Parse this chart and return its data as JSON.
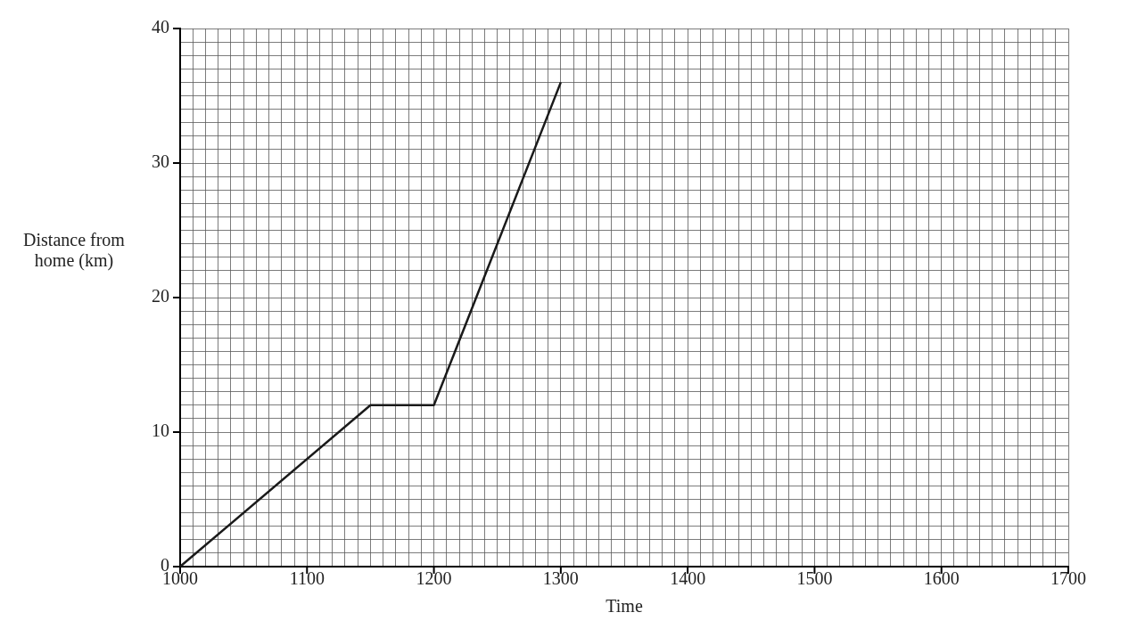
{
  "chart_data": {
    "type": "line",
    "xlabel": "Time",
    "ylabel": "Distance from home (km)",
    "x": [
      1000,
      1150,
      1200,
      1300
    ],
    "series": [
      {
        "color": "#1a1a1a",
        "values": [
          0,
          12,
          12,
          36
        ]
      }
    ],
    "xlim": [
      1000,
      1700
    ],
    "ylim": [
      0,
      40
    ],
    "xticks": [
      1000,
      {
        "value": 1010,
        "label": null
      },
      {
        "value": 1020,
        "label": null
      },
      {
        "value": 1030,
        "label": null
      },
      {
        "value": 1040,
        "label": null
      },
      {
        "value": 1050,
        "label": null
      },
      {
        "value": 1060,
        "label": null
      },
      {
        "value": 1070,
        "label": null
      },
      {
        "value": 1080,
        "label": null
      },
      {
        "value": 1090,
        "label": null
      },
      1100,
      {
        "value": 1110,
        "label": null
      },
      {
        "value": 1120,
        "label": null
      },
      {
        "value": 1130,
        "label": null
      },
      {
        "value": 1140,
        "label": null
      },
      {
        "value": 1150,
        "label": null
      },
      {
        "value": 1160,
        "label": null
      },
      {
        "value": 1170,
        "label": null
      },
      {
        "value": 1180,
        "label": null
      },
      {
        "value": 1190,
        "label": null
      },
      1200,
      {
        "value": 1210,
        "label": null
      },
      {
        "value": 1220,
        "label": null
      },
      {
        "value": 1230,
        "label": null
      },
      {
        "value": 1240,
        "label": null
      },
      {
        "value": 1250,
        "label": null
      },
      {
        "value": 1260,
        "label": null
      },
      {
        "value": 1270,
        "label": null
      },
      {
        "value": 1280,
        "label": null
      },
      {
        "value": 1290,
        "label": null
      },
      1300,
      {
        "value": 1310,
        "label": null
      },
      {
        "value": 1320,
        "label": null
      },
      {
        "value": 1330,
        "label": null
      },
      {
        "value": 1340,
        "label": null
      },
      {
        "value": 1350,
        "label": null
      },
      {
        "value": 1360,
        "label": null
      },
      {
        "value": 1370,
        "label": null
      },
      {
        "value": 1380,
        "label": null
      },
      {
        "value": 1390,
        "label": null
      },
      1400,
      {
        "value": 1410,
        "label": null
      },
      {
        "value": 1420,
        "label": null
      },
      {
        "value": 1430,
        "label": null
      },
      {
        "value": 1440,
        "label": null
      },
      {
        "value": 1450,
        "label": null
      },
      {
        "value": 1460,
        "label": null
      },
      {
        "value": 1470,
        "label": null
      },
      {
        "value": 1480,
        "label": null
      },
      {
        "value": 1490,
        "label": null
      },
      1500,
      {
        "value": 1510,
        "label": null
      },
      {
        "value": 1520,
        "label": null
      },
      {
        "value": 1530,
        "label": null
      },
      {
        "value": 1540,
        "label": null
      },
      {
        "value": 1550,
        "label": null
      },
      {
        "value": 1560,
        "label": null
      },
      {
        "value": 1570,
        "label": null
      },
      {
        "value": 1580,
        "label": null
      },
      {
        "value": 1590,
        "label": null
      },
      1600,
      {
        "value": 1610,
        "label": null
      },
      {
        "value": 1620,
        "label": null
      },
      {
        "value": 1630,
        "label": null
      },
      {
        "value": 1640,
        "label": null
      },
      {
        "value": 1650,
        "label": null
      },
      {
        "value": 1660,
        "label": null
      },
      {
        "value": 1670,
        "label": null
      },
      {
        "value": 1680,
        "label": null
      },
      {
        "value": 1690,
        "label": null
      },
      1700
    ],
    "yticks": [
      0,
      {
        "value": 1,
        "label": null
      },
      {
        "value": 2,
        "label": null
      },
      {
        "value": 3,
        "label": null
      },
      {
        "value": 4,
        "label": null
      },
      {
        "value": 5,
        "label": null
      },
      {
        "value": 6,
        "label": null
      },
      {
        "value": 7,
        "label": null
      },
      {
        "value": 8,
        "label": null
      },
      {
        "value": 9,
        "label": null
      },
      10,
      {
        "value": 11,
        "label": null
      },
      {
        "value": 12,
        "label": null
      },
      {
        "value": 13,
        "label": null
      },
      {
        "value": 14,
        "label": null
      },
      {
        "value": 15,
        "label": null
      },
      {
        "value": 16,
        "label": null
      },
      {
        "value": 17,
        "label": null
      },
      {
        "value": 18,
        "label": null
      },
      {
        "value": 19,
        "label": null
      },
      20,
      {
        "value": 21,
        "label": null
      },
      {
        "value": 22,
        "label": null
      },
      {
        "value": 23,
        "label": null
      },
      {
        "value": 24,
        "label": null
      },
      {
        "value": 25,
        "label": null
      },
      {
        "value": 26,
        "label": null
      },
      {
        "value": 27,
        "label": null
      },
      {
        "value": 28,
        "label": null
      },
      {
        "value": 29,
        "label": null
      },
      30,
      {
        "value": 31,
        "label": null
      },
      {
        "value": 32,
        "label": null
      },
      {
        "value": 33,
        "label": null
      },
      {
        "value": 34,
        "label": null
      },
      {
        "value": 35,
        "label": null
      },
      {
        "value": 36,
        "label": null
      },
      {
        "value": 37,
        "label": null
      },
      {
        "value": 38,
        "label": null
      },
      {
        "value": 39,
        "label": null
      },
      40
    ],
    "grid": true,
    "legend": false,
    "marker": "none",
    "line_style": "solid"
  }
}
